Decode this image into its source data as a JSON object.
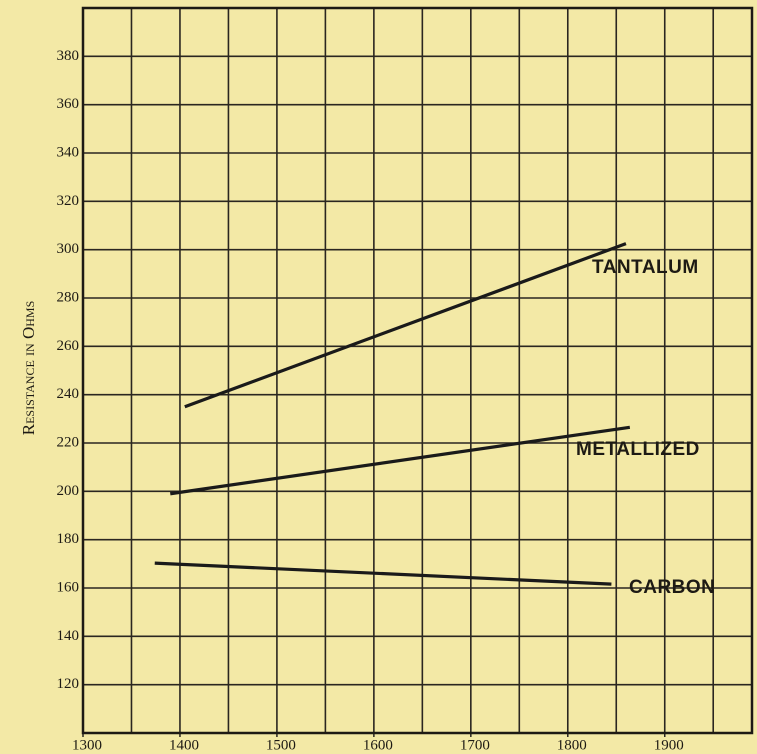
{
  "chart_data": {
    "type": "line",
    "y_label": "Resistance in Ohms",
    "xlim": [
      1300,
      1990
    ],
    "ylim": [
      100,
      400
    ],
    "xticks": [
      1300,
      1400,
      1500,
      1600,
      1700,
      1800,
      1900
    ],
    "xgrid": [
      1300,
      1350,
      1400,
      1450,
      1500,
      1550,
      1600,
      1650,
      1700,
      1750,
      1800,
      1850,
      1900,
      1950
    ],
    "yticks": [
      120,
      140,
      160,
      180,
      200,
      220,
      240,
      260,
      280,
      300,
      320,
      340,
      360,
      380
    ],
    "grid": true,
    "series": [
      {
        "name": "TANTALUM",
        "color": "#1a1a1a",
        "x": [
          1405,
          1860
        ],
        "values": [
          235,
          302.5
        ]
      },
      {
        "name": "METALLIZED",
        "color": "#1a1a1a",
        "x": [
          1390,
          1864
        ],
        "values": [
          199,
          226.5
        ]
      },
      {
        "name": "CARBON",
        "color": "#1a1a1a",
        "x": [
          1374,
          1845
        ],
        "values": [
          170.3,
          161.6
        ]
      }
    ]
  }
}
